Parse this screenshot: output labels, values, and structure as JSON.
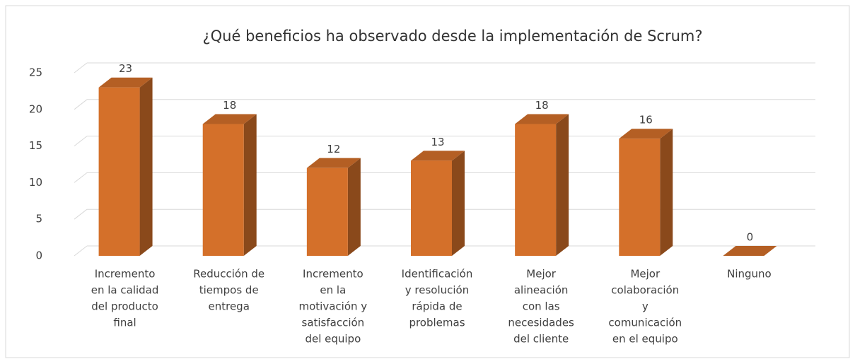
{
  "chart_data": {
    "type": "bar3d",
    "title": "¿Qué beneficios ha observado desde la implementación de Scrum?",
    "categories": [
      [
        "Incremento",
        "en la calidad",
        "del producto",
        "final"
      ],
      [
        "Reducción de",
        "tiempos de",
        "entrega"
      ],
      [
        "Incremento",
        "en la",
        "motivación y",
        "satisfacción",
        "del equipo"
      ],
      [
        "Identificación",
        "y resolución",
        "rápida de",
        "problemas"
      ],
      [
        "Mejor",
        "alineación",
        "con las",
        "necesidades",
        "del cliente"
      ],
      [
        "Mejor",
        "colaboración",
        "y",
        "comunicación",
        "en el equipo"
      ],
      [
        "Ninguno"
      ]
    ],
    "values": [
      23,
      18,
      12,
      13,
      18,
      16,
      0
    ],
    "color": "#d4702a",
    "ylim": [
      0,
      25
    ],
    "yticks": [
      0,
      5,
      10,
      15,
      20,
      25
    ],
    "grid": true
  }
}
